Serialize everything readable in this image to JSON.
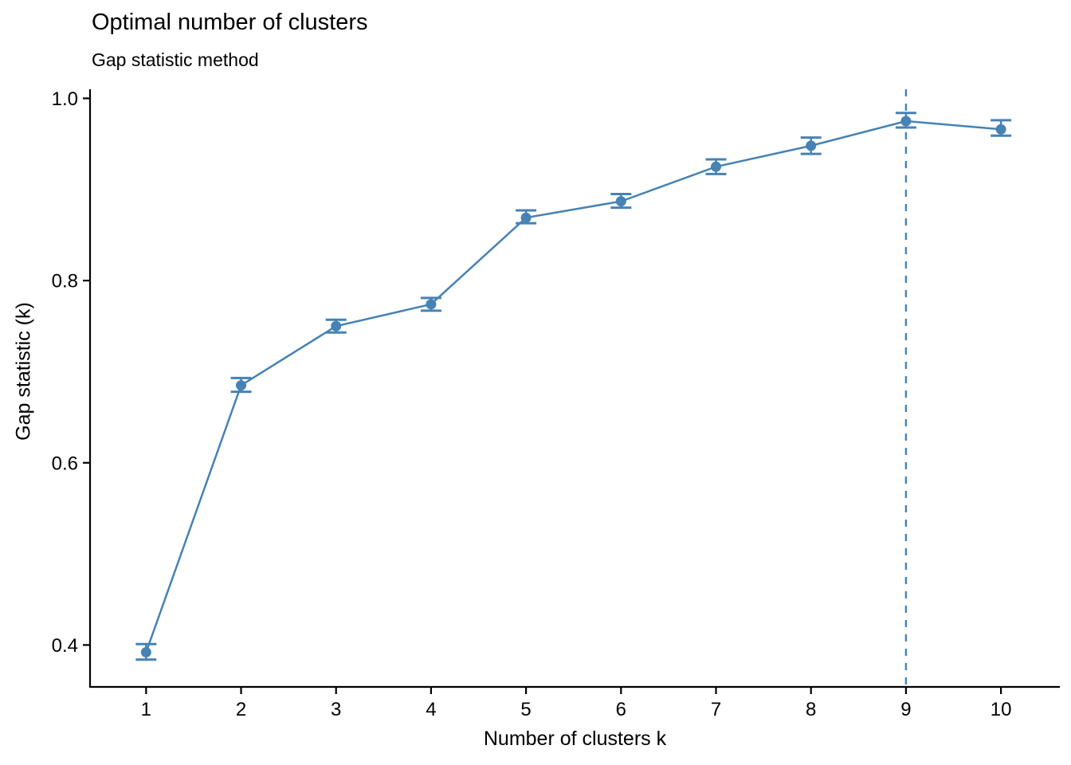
{
  "chart_data": {
    "type": "line",
    "title": "Optimal number of clusters",
    "subtitle": "Gap statistic method",
    "xlabel": "Number of clusters k",
    "ylabel": "Gap statistic (k)",
    "x": [
      1,
      2,
      3,
      4,
      5,
      6,
      7,
      8,
      9,
      10
    ],
    "series": [
      {
        "name": "Gap statistic",
        "values": [
          0.392,
          0.685,
          0.75,
          0.774,
          0.869,
          0.887,
          0.925,
          0.948,
          0.975,
          0.966
        ],
        "ymin": [
          0.384,
          0.678,
          0.743,
          0.767,
          0.863,
          0.88,
          0.917,
          0.939,
          0.968,
          0.959
        ],
        "ymax": [
          0.401,
          0.693,
          0.757,
          0.781,
          0.877,
          0.895,
          0.933,
          0.957,
          0.984,
          0.976
        ]
      }
    ],
    "xticks": [
      1,
      2,
      3,
      4,
      5,
      6,
      7,
      8,
      9,
      10
    ],
    "xtick_labels": [
      "1",
      "2",
      "3",
      "4",
      "5",
      "6",
      "7",
      "8",
      "9",
      "10"
    ],
    "yticks": [
      0.4,
      0.6,
      0.8,
      1.0
    ],
    "ytick_labels": [
      "0.4",
      "0.6",
      "0.8",
      "1.0"
    ],
    "xlim": [
      0.41,
      10.62
    ],
    "ylim": [
      0.354,
      1.01
    ],
    "grid": false,
    "legend": "none",
    "vline": {
      "x": 9,
      "style": "dashed",
      "color": "#4682B4"
    },
    "optimal_k": 9,
    "colors": {
      "line": "#4682B4",
      "point": "#4682B4",
      "error_bar": "#4682B4",
      "axis": "#000000",
      "text": "#000000",
      "background": "#FFFFFF"
    }
  }
}
